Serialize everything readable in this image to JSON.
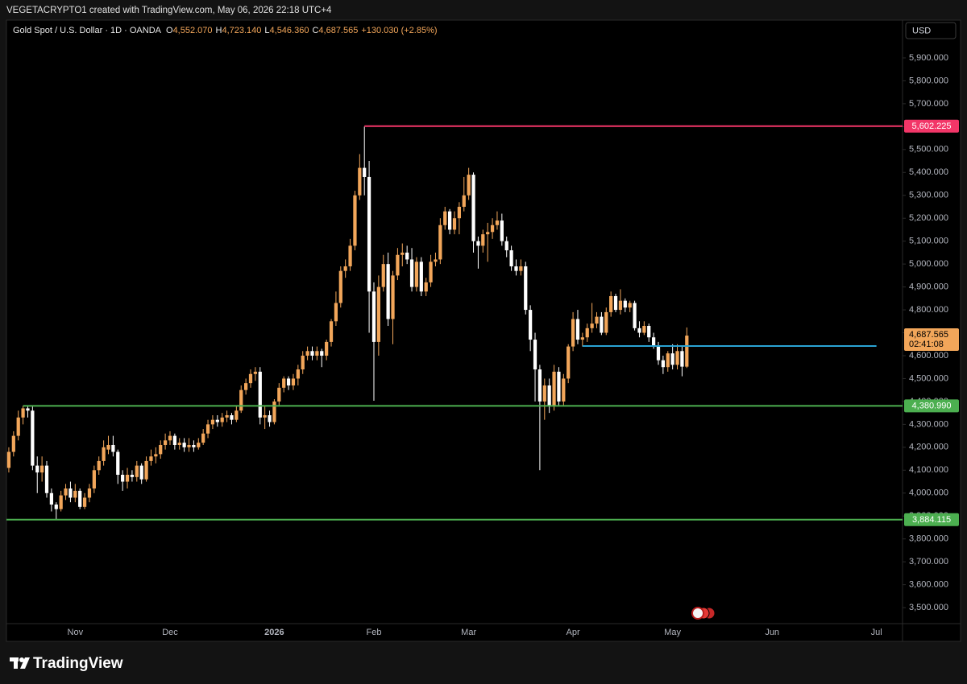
{
  "header": {
    "attribution": "VEGETACRYPTO1 created with TradingView.com, May 06, 2026 22:18 UTC+4",
    "symbol": "Gold Spot / U.S. Dollar · 1D · OANDA",
    "ohlc": [
      {
        "label": "O",
        "value": "4,552.070"
      },
      {
        "label": "H",
        "value": "4,723.140"
      },
      {
        "label": "L",
        "value": "4,546.360"
      },
      {
        "label": "C",
        "value": "4,687.565"
      }
    ],
    "change": "+130.030 (+2.85%)"
  },
  "chart_data": {
    "type": "candlestick",
    "currency": "USD",
    "up_color": "#f2a65a",
    "down_color": "#ffffff",
    "grid": false,
    "categories": [
      null,
      null,
      null,
      null,
      null,
      null,
      null,
      null,
      null,
      null,
      null,
      null,
      null,
      null,
      "Nov",
      null,
      null,
      null,
      null,
      null,
      null,
      null,
      null,
      null,
      null,
      null,
      null,
      null,
      null,
      null,
      null,
      null,
      null,
      null,
      "Dec",
      null,
      null,
      null,
      null,
      null,
      null,
      null,
      null,
      null,
      null,
      null,
      null,
      null,
      null,
      null,
      null,
      null,
      null,
      null,
      null,
      null,
      "2026",
      null,
      null,
      null,
      null,
      null,
      null,
      null,
      null,
      null,
      null,
      null,
      null,
      null,
      null,
      null,
      null,
      null,
      null,
      null,
      null,
      "Feb",
      null,
      null,
      null,
      null,
      null,
      null,
      null,
      null,
      null,
      null,
      null,
      null,
      null,
      null,
      null,
      null,
      null,
      null,
      null,
      "Mar",
      null,
      null,
      null,
      null,
      null,
      null,
      null,
      null,
      null,
      null,
      null,
      null,
      null,
      null,
      null,
      null,
      null,
      null,
      null,
      null,
      null,
      "Apr",
      null,
      null,
      null,
      null,
      null,
      null,
      null,
      null,
      null,
      null,
      null,
      null,
      null,
      null,
      null,
      null,
      null,
      null,
      null,
      null,
      "May",
      null,
      null,
      null,
      null,
      null,
      null,
      null,
      null,
      null,
      null,
      null,
      null,
      null,
      null,
      null,
      null,
      null,
      null,
      null,
      null,
      "Jun",
      null,
      null,
      null,
      null,
      null,
      null,
      null,
      null,
      null,
      null,
      null,
      null,
      null,
      null,
      null,
      null,
      null,
      null,
      null,
      null,
      null,
      "Jul",
      null,
      null,
      null,
      null,
      null
    ],
    "open": [
      4110,
      4180,
      4250,
      4330,
      4370,
      4360,
      4120,
      4090,
      4120,
      4000,
      3950,
      3930,
      3990,
      4020,
      3980,
      4010,
      3940,
      3980,
      4020,
      4100,
      4140,
      4190,
      4210,
      4180,
      4080,
      4050,
      4080,
      4070,
      4120,
      4060,
      4140,
      4160,
      4170,
      4210,
      4230,
      4250,
      4210,
      4220,
      4200,
      4210,
      4200,
      4220,
      4260,
      4300,
      4320,
      4310,
      4330,
      4340,
      4320,
      4360,
      4450,
      4480,
      4520,
      4530,
      4330,
      4340,
      4310,
      4400,
      4460,
      4500,
      4470,
      4500,
      4540,
      4600,
      4620,
      4600,
      4620,
      4600,
      4660,
      4750,
      4830,
      4970,
      4990,
      5080,
      5300,
      5420,
      5380,
      4880,
      4660,
      4900,
      5000,
      4760,
      4950,
      5040,
      5050,
      5020,
      4900,
      5010,
      4880,
      4920,
      5010,
      5020,
      5170,
      5230,
      5150,
      5200,
      5250,
      5300,
      5390,
      5100,
      5080,
      5130,
      5140,
      5170,
      5190,
      5100,
      5060,
      4990,
      4970,
      4990,
      4800,
      4670,
      4540,
      4400,
      4470,
      4380,
      4530,
      4400,
      4500,
      4640,
      4760,
      4670,
      4680,
      4720,
      4740,
      4770,
      4700,
      4790,
      4860,
      4800,
      4840,
      4810,
      4830,
      4720,
      4700,
      4730,
      4680,
      4640,
      4580,
      4550,
      4610,
      4560,
      4620,
      4552.07,
      null,
      null,
      null,
      null,
      null,
      null,
      null,
      null,
      null,
      null,
      null,
      null,
      null,
      null,
      null,
      null,
      null,
      null,
      null,
      null,
      null,
      null,
      null,
      null,
      null,
      null,
      null,
      null,
      null,
      null,
      null,
      null,
      null,
      null,
      null,
      null,
      null,
      null,
      null,
      null,
      null,
      null,
      null,
      null,
      null
    ],
    "high": [
      4200,
      4270,
      4360,
      4381,
      4381,
      4380,
      4160,
      4160,
      4140,
      4020,
      3960,
      4010,
      4040,
      4050,
      4040,
      4020,
      4000,
      4040,
      4120,
      4160,
      4230,
      4250,
      4250,
      4190,
      4100,
      4110,
      4100,
      4140,
      4130,
      4160,
      4190,
      4200,
      4230,
      4260,
      4270,
      4260,
      4240,
      4240,
      4240,
      4230,
      4240,
      4280,
      4320,
      4340,
      4340,
      4350,
      4360,
      4350,
      4380,
      4470,
      4500,
      4540,
      4550,
      4550,
      4380,
      4360,
      4410,
      4480,
      4510,
      4510,
      4520,
      4560,
      4620,
      4640,
      4640,
      4640,
      4630,
      4670,
      4760,
      4880,
      4990,
      5020,
      5110,
      5320,
      5480,
      5600,
      5450,
      4920,
      4950,
      5040,
      5050,
      4970,
      5070,
      5090,
      5080,
      5070,
      5030,
      5030,
      4940,
      5040,
      5050,
      5200,
      5250,
      5240,
      5230,
      5270,
      5380,
      5420,
      5400,
      5120,
      5150,
      5180,
      5200,
      5230,
      5220,
      5120,
      5080,
      5020,
      5020,
      5010,
      4820,
      4700,
      4560,
      4500,
      4500,
      4560,
      4550,
      4520,
      4650,
      4790,
      4800,
      4700,
      4740,
      4830,
      4790,
      4790,
      4810,
      4880,
      4870,
      4890,
      4850,
      4840,
      4840,
      4750,
      4750,
      4740,
      4700,
      4660,
      4600,
      4620,
      4650,
      4650,
      4640,
      4723.14,
      null,
      null,
      null,
      null,
      null,
      null,
      null,
      null,
      null,
      null,
      null,
      null,
      null,
      null,
      null,
      null,
      null,
      null,
      null,
      null,
      null,
      null,
      null,
      null,
      null,
      null,
      null,
      null,
      null,
      null,
      null,
      null,
      null,
      null,
      null,
      null,
      null,
      null,
      null,
      null,
      null,
      null,
      null,
      null,
      null
    ],
    "low": [
      4090,
      4160,
      4230,
      4300,
      4330,
      4100,
      4000,
      4050,
      3980,
      3920,
      3886,
      3920,
      3970,
      3960,
      3960,
      3930,
      3930,
      3960,
      4000,
      4080,
      4120,
      4170,
      4160,
      4040,
      4010,
      4020,
      4050,
      4050,
      4040,
      4050,
      4120,
      4130,
      4150,
      4190,
      4210,
      4190,
      4190,
      4180,
      4180,
      4180,
      4190,
      4210,
      4240,
      4280,
      4290,
      4290,
      4310,
      4300,
      4310,
      4350,
      4430,
      4460,
      4490,
      4300,
      4280,
      4290,
      4300,
      4380,
      4440,
      4450,
      4450,
      4470,
      4520,
      4580,
      4580,
      4580,
      4550,
      4580,
      4640,
      4730,
      4810,
      4940,
      4970,
      5060,
      5280,
      5300,
      4700,
      4403,
      4600,
      4880,
      4730,
      4650,
      4930,
      4990,
      5000,
      4880,
      4880,
      4860,
      4860,
      4900,
      4990,
      5000,
      5150,
      5130,
      5130,
      5130,
      5230,
      5280,
      5050,
      4980,
      5050,
      5010,
      5110,
      5150,
      5080,
      5030,
      4970,
      4950,
      4950,
      4780,
      4620,
      4400,
      4100,
      4320,
      4350,
      4360,
      4380,
      4380,
      4480,
      4620,
      4650,
      4640,
      4660,
      4700,
      4720,
      4690,
      4690,
      4770,
      4790,
      4780,
      4790,
      4790,
      4710,
      4680,
      4690,
      4660,
      4630,
      4560,
      4520,
      4530,
      4540,
      4540,
      4510,
      4546.36,
      null,
      null,
      null,
      null,
      null,
      null,
      null,
      null,
      null,
      null,
      null,
      null,
      null,
      null,
      null,
      null,
      null,
      null,
      null,
      null,
      null,
      null,
      null,
      null,
      null,
      null,
      null,
      null,
      null,
      null,
      null,
      null,
      null,
      null,
      null,
      null,
      null,
      null,
      null,
      null,
      null,
      null,
      null,
      null,
      null
    ],
    "close": [
      4180,
      4250,
      4330,
      4370,
      4360,
      4120,
      4090,
      4120,
      4000,
      3950,
      3930,
      3990,
      4020,
      3980,
      4010,
      3940,
      3980,
      4020,
      4100,
      4140,
      4200,
      4210,
      4180,
      4080,
      4050,
      4080,
      4070,
      4120,
      4060,
      4140,
      4160,
      4170,
      4210,
      4230,
      4250,
      4210,
      4220,
      4200,
      4210,
      4200,
      4220,
      4260,
      4300,
      4320,
      4310,
      4330,
      4340,
      4320,
      4360,
      4450,
      4480,
      4520,
      4530,
      4330,
      4340,
      4310,
      4400,
      4460,
      4500,
      4470,
      4500,
      4540,
      4600,
      4620,
      4600,
      4620,
      4600,
      4660,
      4750,
      4830,
      4970,
      4990,
      5080,
      5300,
      5420,
      5380,
      4880,
      4660,
      4900,
      5000,
      4760,
      4950,
      5040,
      5050,
      5020,
      4900,
      5010,
      4880,
      4920,
      5010,
      5020,
      5170,
      5230,
      5150,
      5200,
      5250,
      5300,
      5390,
      5100,
      5080,
      5130,
      5140,
      5170,
      5190,
      5100,
      5060,
      4990,
      4970,
      4990,
      4800,
      4670,
      4540,
      4400,
      4470,
      4380,
      4530,
      4400,
      4500,
      4640,
      4760,
      4670,
      4680,
      4720,
      4740,
      4770,
      4700,
      4790,
      4860,
      4800,
      4840,
      4810,
      4830,
      4720,
      4700,
      4730,
      4680,
      4640,
      4580,
      4550,
      4610,
      4560,
      4620,
      4552.07,
      4687.565,
      null,
      null,
      null,
      null,
      null,
      null,
      null,
      null,
      null,
      null,
      null,
      null,
      null,
      null,
      null,
      null,
      null,
      null,
      null,
      null,
      null,
      null,
      null,
      null,
      null,
      null,
      null,
      null,
      null,
      null,
      null,
      null,
      null,
      null,
      null,
      null,
      null,
      null,
      null,
      null,
      null,
      null,
      null,
      null,
      null
    ],
    "last_label": "4,687.565",
    "countdown": "02:41:08",
    "ylim": [
      3430,
      6065
    ],
    "yticks": [
      {
        "value": 3500,
        "label": "3,500.000"
      },
      {
        "value": 3600,
        "label": "3,600.000"
      },
      {
        "value": 3700,
        "label": "3,700.000"
      },
      {
        "value": 3800,
        "label": "3,800.000"
      },
      {
        "value": 3900,
        "label": "3,900.000"
      },
      {
        "value": 4000,
        "label": "4,000.000"
      },
      {
        "value": 4100,
        "label": "4,100.000"
      },
      {
        "value": 4200,
        "label": "4,200.000"
      },
      {
        "value": 4300,
        "label": "4,300.000"
      },
      {
        "value": 4400,
        "label": "4,400.000"
      },
      {
        "value": 4500,
        "label": "4,500.000"
      },
      {
        "value": 4600,
        "label": "4,600.000"
      },
      {
        "value": 4700,
        "label": "4,700.000"
      },
      {
        "value": 4800,
        "label": "4,800.000"
      },
      {
        "value": 4900,
        "label": "4,900.000"
      },
      {
        "value": 5000,
        "label": "5,000.000"
      },
      {
        "value": 5100,
        "label": "5,100.000"
      },
      {
        "value": 5200,
        "label": "5,200.000"
      },
      {
        "value": 5300,
        "label": "5,300.000"
      },
      {
        "value": 5400,
        "label": "5,400.000"
      },
      {
        "value": 5500,
        "label": "5,500.000"
      },
      {
        "value": 5600,
        "label": "5,600.000"
      },
      {
        "value": 5700,
        "label": "5,700.000"
      },
      {
        "value": 5800,
        "label": "5,800.000"
      },
      {
        "value": 5900,
        "label": "5,900.000"
      }
    ],
    "hlines": [
      {
        "value": 5602.225,
        "label": "5,602.225",
        "color": "#f23668"
      },
      {
        "value": 4380.99,
        "label": "4,380.990",
        "color": "#4caf50"
      },
      {
        "value": 3884.115,
        "label": "3,884.115",
        "color": "#4caf50"
      },
      {
        "value": 4642,
        "color": "#2aa3d3"
      }
    ]
  },
  "footer": {
    "brand": "TradingView"
  }
}
